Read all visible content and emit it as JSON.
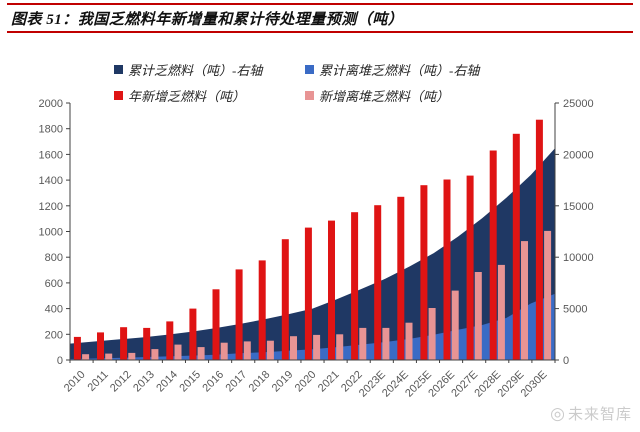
{
  "header": {
    "title": "图表 51：我国乏燃料年新增量和累计待处理量预测（吨）",
    "rule_color": "#C00000"
  },
  "watermark": {
    "icon": "◎",
    "text": "未来智库"
  },
  "chart_data": {
    "type": "combo",
    "title": "我国乏燃料年新增量和累计待处理量预测（吨）",
    "categories": [
      "2010",
      "2011",
      "2012",
      "2013",
      "2014",
      "2015",
      "2016",
      "2017",
      "2018",
      "2019",
      "2020",
      "2021",
      "2022",
      "2023E",
      "2024E",
      "2025E",
      "2026E",
      "2027E",
      "2028E",
      "2029E",
      "2030E"
    ],
    "series": [
      {
        "key": "cumulative-spent-fuel",
        "name": "累计乏燃料（吨）-右轴",
        "chart": "area",
        "axis": "right",
        "color": "#1F3864",
        "values": [
          1600,
          1800,
          2000,
          2200,
          2450,
          2750,
          3100,
          3500,
          3950,
          4450,
          5000,
          5900,
          6900,
          7900,
          9100,
          10400,
          12000,
          13800,
          15800,
          18000,
          20600
        ]
      },
      {
        "key": "cumulative-offsite-spent-fuel",
        "name": "累计离堆乏燃料（吨）-右轴",
        "chart": "area",
        "axis": "right",
        "color": "#3A6BC5",
        "values": [
          100,
          150,
          200,
          280,
          350,
          430,
          520,
          650,
          760,
          900,
          1050,
          1250,
          1500,
          1750,
          2050,
          2450,
          2950,
          3400,
          4100,
          5500,
          6450
        ]
      },
      {
        "key": "annual-new-spent-fuel",
        "name": "年新增乏燃料（吨）",
        "chart": "bar",
        "axis": "left",
        "color": "#DF1414",
        "values": [
          180,
          215,
          255,
          250,
          300,
          400,
          550,
          705,
          775,
          940,
          1030,
          1085,
          1150,
          1205,
          1270,
          1360,
          1405,
          1435,
          1630,
          1760,
          1870
        ]
      },
      {
        "key": "annual-new-offsite-spent-fuel",
        "name": "新增离堆乏燃料（吨）",
        "chart": "bar",
        "axis": "left",
        "color": "#E89494",
        "values": [
          45,
          50,
          55,
          85,
          120,
          100,
          135,
          145,
          150,
          185,
          195,
          200,
          250,
          250,
          290,
          405,
          540,
          685,
          740,
          925,
          1005
        ]
      }
    ],
    "left_axis": {
      "min": 0,
      "max": 2000,
      "step": 200
    },
    "right_axis": {
      "min": 0,
      "max": 25000,
      "step": 5000
    },
    "legend_position": "top",
    "grid": false
  }
}
